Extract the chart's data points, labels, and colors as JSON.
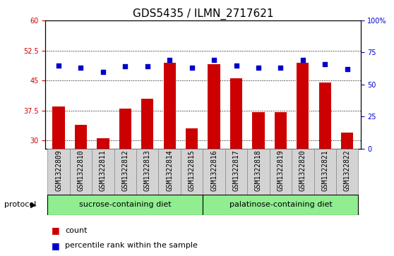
{
  "title": "GDS5435 / ILMN_2717621",
  "samples": [
    "GSM1322809",
    "GSM1322810",
    "GSM1322811",
    "GSM1322812",
    "GSM1322813",
    "GSM1322814",
    "GSM1322815",
    "GSM1322816",
    "GSM1322817",
    "GSM1322818",
    "GSM1322819",
    "GSM1322820",
    "GSM1322821",
    "GSM1322822"
  ],
  "counts": [
    38.5,
    34.0,
    30.5,
    38.0,
    40.5,
    49.5,
    33.0,
    49.0,
    45.5,
    37.0,
    37.0,
    49.5,
    44.5,
    32.0
  ],
  "percentiles": [
    65,
    63,
    60,
    64,
    64,
    69,
    63,
    69,
    65,
    63,
    63,
    69,
    66,
    62
  ],
  "ylim_left": [
    28,
    60
  ],
  "ylim_right": [
    0,
    100
  ],
  "yticks_left": [
    30,
    37.5,
    45,
    52.5,
    60
  ],
  "yticks_right": [
    0,
    25,
    50,
    75,
    100
  ],
  "bar_color": "#cc0000",
  "dot_color": "#0000cc",
  "protocol_groups": [
    {
      "label": "sucrose-containing diet",
      "span": 7,
      "color": "#90ee90"
    },
    {
      "label": "palatinose-containing diet",
      "span": 7,
      "color": "#90ee90"
    }
  ],
  "protocol_label": "protocol",
  "legend_count_label": "count",
  "legend_percentile_label": "percentile rank within the sample",
  "left_axis_color": "#cc0000",
  "right_axis_color": "#0000cc",
  "plot_bg": "#ffffff",
  "xtick_bg": "#d3d3d3",
  "title_fontsize": 11,
  "tick_fontsize": 7,
  "label_fontsize": 8,
  "bar_width": 0.55
}
